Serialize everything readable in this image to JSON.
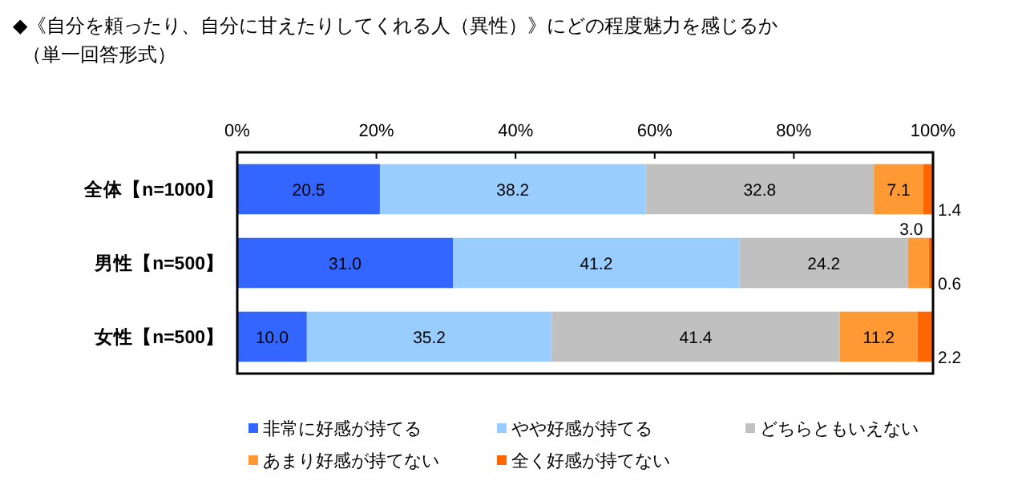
{
  "chart_data": {
    "type": "bar",
    "orientation": "horizontal",
    "stacked": true,
    "title": "◆《自分を頼ったり、自分に甘えたりしてくれる人（異性）》にどの程度魅力を感じるか",
    "subtitle": "（単一回答形式）",
    "categories": [
      "全体【n=1000】",
      "男性【n=500】",
      "女性【n=500】"
    ],
    "series": [
      {
        "name": "非常に好感が持てる",
        "color": "#3366ff",
        "values": [
          20.5,
          31.0,
          10.0
        ],
        "value_labels": [
          "20.5",
          "31.0",
          "10.0"
        ]
      },
      {
        "name": "やや好感が持てる",
        "color": "#99ccff",
        "values": [
          38.2,
          41.2,
          35.2
        ],
        "value_labels": [
          "38.2",
          "41.2",
          "35.2"
        ]
      },
      {
        "name": "どちらともいえない",
        "color": "#c0c0c0",
        "values": [
          32.8,
          24.2,
          41.4
        ],
        "value_labels": [
          "32.8",
          "24.2",
          "41.4"
        ]
      },
      {
        "name": "あまり好感が持てない",
        "color": "#ff9933",
        "values": [
          7.1,
          3.0,
          11.2
        ],
        "value_labels": [
          "7.1",
          "3.0",
          "11.2"
        ]
      },
      {
        "name": "全く好感が持てない",
        "color": "#ff6600",
        "values": [
          1.4,
          0.6,
          2.2
        ],
        "value_labels": [
          "1.4",
          "0.6",
          "2.2"
        ]
      }
    ],
    "xlim": [
      0,
      100
    ],
    "xticks": [
      {
        "value": 0,
        "label": "0%"
      },
      {
        "value": 20,
        "label": "20%"
      },
      {
        "value": 40,
        "label": "40%"
      },
      {
        "value": 60,
        "label": "60%"
      },
      {
        "value": 80,
        "label": "80%"
      },
      {
        "value": 100,
        "label": "100%"
      }
    ],
    "legend": "bottom"
  }
}
